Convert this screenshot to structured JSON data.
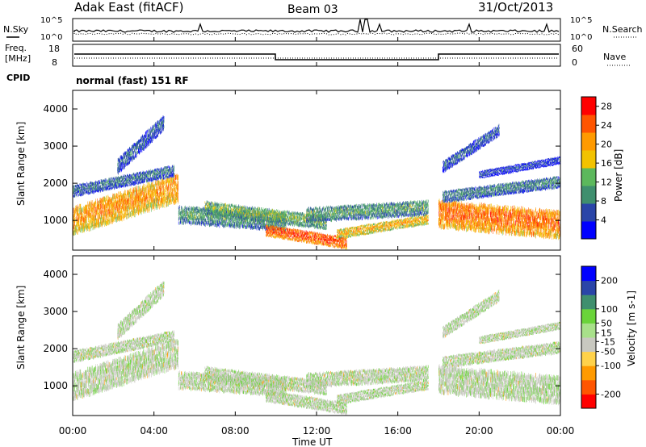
{
  "header": {
    "station": "Adak East (fitACF)",
    "beam": "Beam 03",
    "date": "31/Oct/2013"
  },
  "noise_panel": {
    "left_label": "N.Sky",
    "right_label": "N.Search",
    "left_ticks": [
      "10^5",
      "10^0"
    ],
    "right_ticks": [
      "10^5",
      "10^0"
    ]
  },
  "freq_panel": {
    "left_label_1": "Freq.",
    "left_label_2": "[MHz]",
    "right_label": "Nave",
    "left_ticks": [
      "18",
      "8"
    ],
    "right_ticks": [
      "60",
      "0"
    ]
  },
  "cpid": {
    "label": "CPID",
    "value": "normal (fast) 151 RF"
  },
  "colors": {
    "power": [
      "#0000ff",
      "#2a45a8",
      "#3f8f6e",
      "#5cb85c",
      "#f2c200",
      "#ff9a00",
      "#ff5500",
      "#ff0000"
    ],
    "velocity_grey": "#c8c8c0",
    "velocity_green": "#6ad43a"
  },
  "chart_data": [
    {
      "type": "heatmap",
      "name": "power",
      "ylabel": "Slant Range [km]",
      "yticks": [
        "1000",
        "2000",
        "3000",
        "4000"
      ],
      "ylim": [
        200,
        4500
      ],
      "colorbar_label": "Power [dB]",
      "colorbar_ticks": [
        "4",
        "8",
        "12",
        "16",
        "20",
        "24",
        "28"
      ],
      "colorbar_range": [
        0,
        30
      ]
    },
    {
      "type": "heatmap",
      "name": "velocity",
      "ylabel": "Slant Range [km]",
      "yticks": [
        "1000",
        "2000",
        "3000",
        "4000"
      ],
      "ylim": [
        200,
        4500
      ],
      "colorbar_label": "Velocity [m s-1]",
      "colorbar_ticks": [
        "200",
        "100",
        "50",
        "15",
        "-15",
        "-50",
        "-100",
        "-200"
      ],
      "colorbar_range": [
        -250,
        250
      ]
    }
  ],
  "x_axis": {
    "label": "Time UT",
    "ticks": [
      "00:00",
      "04:00",
      "08:00",
      "12:00",
      "16:00",
      "20:00",
      "00:00"
    ],
    "range_hours": [
      0,
      24
    ]
  }
}
